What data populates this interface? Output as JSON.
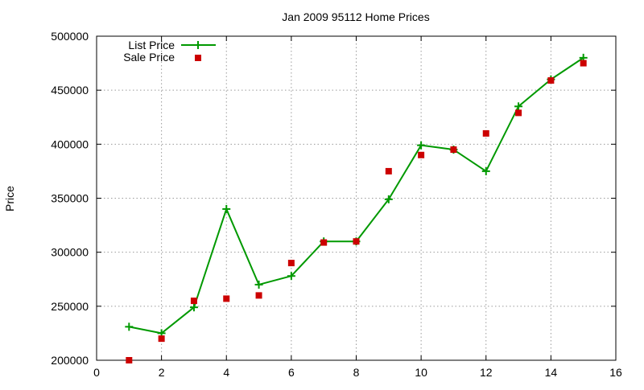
{
  "chart_data": {
    "type": "line",
    "title": "Jan 2009 95112 Home Prices",
    "xlabel": "",
    "ylabel": "Price",
    "xlim": [
      0,
      16
    ],
    "ylim": [
      200000,
      500000
    ],
    "x_ticks": [
      0,
      2,
      4,
      6,
      8,
      10,
      12,
      14,
      16
    ],
    "y_ticks": [
      200000,
      250000,
      300000,
      350000,
      400000,
      450000,
      500000
    ],
    "grid": true,
    "legend_position": "top-left",
    "series": [
      {
        "name": "List Price",
        "style": "linespoints",
        "marker": "plus",
        "color": "#009900",
        "x": [
          1,
          2,
          3,
          4,
          5,
          6,
          7,
          8,
          9,
          10,
          11,
          12,
          13,
          14,
          15
        ],
        "values": [
          231000,
          225000,
          249000,
          340000,
          270000,
          278000,
          310000,
          310000,
          349000,
          399000,
          395000,
          375000,
          435000,
          460000,
          480000
        ]
      },
      {
        "name": "Sale Price",
        "style": "points",
        "marker": "square",
        "color": "#cc0000",
        "x": [
          1,
          2,
          3,
          4,
          5,
          6,
          7,
          8,
          9,
          10,
          11,
          12,
          13,
          14,
          15
        ],
        "values": [
          200000,
          220000,
          255000,
          257000,
          260000,
          290000,
          309000,
          310000,
          375000,
          390000,
          395000,
          410000,
          429000,
          459000,
          475000
        ]
      }
    ]
  }
}
